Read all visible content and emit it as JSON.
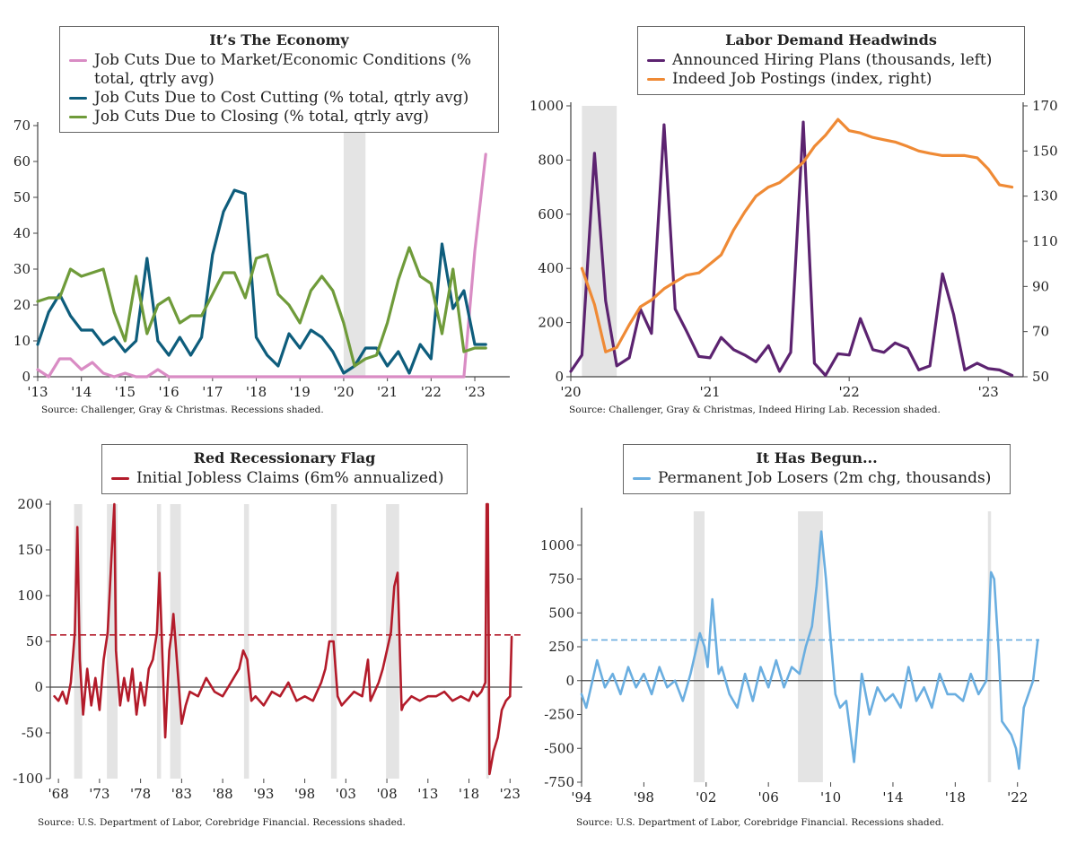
{
  "panels": {
    "p1": {
      "title": "It’s The Economy",
      "legend": [
        "Job Cuts Due to Market/Economic Conditions (% total, qtrly avg)",
        "Job Cuts Due to Cost Cutting (% total, qtrly avg)",
        "Job Cuts Due to Closing (% total, qtrly avg)"
      ],
      "source": "Source: Challenger, Gray & Christmas. Recessions shaded."
    },
    "p2": {
      "title": "Labor Demand Headwinds",
      "legend": [
        "Announced Hiring Plans (thousands, left)",
        "Indeed Job Postings (index, right)"
      ],
      "source": "Source: Challenger, Gray & Christmas, Indeed Hiring Lab. Recession shaded."
    },
    "p3": {
      "title": "Red Recessionary Flag",
      "legend": [
        "Initial Jobless Claims (6m% annualized)"
      ],
      "source": "Source: U.S. Department of Labor, Corebridge Financial. Recessions shaded."
    },
    "p4": {
      "title": "It Has Begun...",
      "legend": [
        "Permanent Job Losers (2m chg, thousands)"
      ],
      "source": "Source: U.S. Department of Labor, Corebridge Financial. Recessions shaded."
    }
  },
  "colors": {
    "pink": "#d98cc4",
    "teal": "#0e5d7c",
    "green": "#6f9b3a",
    "purple": "#5c2370",
    "orange": "#ef8a35",
    "red": "#b31b2a",
    "blue": "#6aaee0",
    "shade": "#e4e4e4"
  },
  "chart_data": [
    {
      "type": "line",
      "title": "It’s The Economy",
      "x_ticks": [
        "'13",
        "'14",
        "'15",
        "'16",
        "'17",
        "'18",
        "'19",
        "'20",
        "'21",
        "'22",
        "'23"
      ],
      "y_ticks": [
        0,
        10,
        20,
        30,
        40,
        50,
        60,
        70
      ],
      "ylim": [
        0,
        70
      ],
      "x_range": [
        2013,
        2023.8
      ],
      "recessions": [
        [
          2020.0,
          2020.5
        ]
      ],
      "series": [
        {
          "name": "Job Cuts Due to Market/Economic Conditions (% total, qtrly avg)",
          "color": "pink",
          "x": [
            2013,
            2013.25,
            2013.5,
            2013.75,
            2014,
            2014.25,
            2014.5,
            2014.75,
            2015,
            2015.25,
            2015.5,
            2015.75,
            2016,
            2016.25,
            2016.5,
            2016.75,
            2017,
            2017.5,
            2018,
            2018.5,
            2019,
            2019.5,
            2020,
            2020.5,
            2021,
            2021.5,
            2022,
            2022.25,
            2022.5,
            2022.75,
            2023,
            2023.25
          ],
          "values": [
            2,
            0,
            5,
            5,
            2,
            4,
            1,
            0,
            1,
            0,
            0,
            2,
            0,
            0,
            0,
            0,
            0,
            0,
            0,
            0,
            0,
            0,
            0,
            0,
            0,
            0,
            0,
            0,
            0,
            0,
            35,
            62
          ]
        },
        {
          "name": "Job Cuts Due to Cost Cutting (% total, qtrly avg)",
          "color": "teal",
          "x": [
            2013,
            2013.25,
            2013.5,
            2013.75,
            2014,
            2014.25,
            2014.5,
            2014.75,
            2015,
            2015.25,
            2015.5,
            2015.75,
            2016,
            2016.25,
            2016.5,
            2016.75,
            2017,
            2017.25,
            2017.5,
            2017.75,
            2018,
            2018.25,
            2018.5,
            2018.75,
            2019,
            2019.25,
            2019.5,
            2019.75,
            2020,
            2020.25,
            2020.5,
            2020.75,
            2021,
            2021.25,
            2021.5,
            2021.75,
            2022,
            2022.25,
            2022.5,
            2022.75,
            2023,
            2023.25
          ],
          "values": [
            9,
            18,
            23,
            17,
            13,
            13,
            9,
            11,
            7,
            10,
            33,
            10,
            6,
            11,
            6,
            11,
            34,
            46,
            52,
            51,
            11,
            6,
            3,
            12,
            8,
            13,
            11,
            7,
            1,
            3,
            8,
            8,
            3,
            7,
            1,
            9,
            5,
            37,
            19,
            24,
            9,
            9
          ]
        },
        {
          "name": "Job Cuts Due to Closing (% total, qtrly avg)",
          "color": "green",
          "x": [
            2013,
            2013.25,
            2013.5,
            2013.75,
            2014,
            2014.25,
            2014.5,
            2014.75,
            2015,
            2015.25,
            2015.5,
            2015.75,
            2016,
            2016.25,
            2016.5,
            2016.75,
            2017,
            2017.25,
            2017.5,
            2017.75,
            2018,
            2018.25,
            2018.5,
            2018.75,
            2019,
            2019.25,
            2019.5,
            2019.75,
            2020,
            2020.25,
            2020.5,
            2020.75,
            2021,
            2021.25,
            2021.5,
            2021.75,
            2022,
            2022.25,
            2022.5,
            2022.75,
            2023,
            2023.25
          ],
          "values": [
            21,
            22,
            22,
            30,
            28,
            29,
            30,
            18,
            10,
            28,
            12,
            20,
            22,
            15,
            17,
            17,
            23,
            29,
            29,
            22,
            33,
            34,
            23,
            20,
            15,
            24,
            28,
            24,
            15,
            3,
            5,
            6,
            15,
            27,
            36,
            28,
            26,
            12,
            30,
            7,
            8,
            8
          ]
        }
      ]
    },
    {
      "type": "line",
      "title": "Labor Demand Headwinds",
      "x_ticks": [
        "'20",
        "'21",
        "'22",
        "'23"
      ],
      "y_ticks_left": [
        0,
        200,
        400,
        600,
        800,
        1000
      ],
      "y_ticks_right": [
        50,
        70,
        90,
        110,
        130,
        150,
        170
      ],
      "ylim_left": [
        0,
        1000
      ],
      "ylim_right": [
        50,
        170
      ],
      "x_range": [
        2020,
        2023.25
      ],
      "recessions": [
        [
          2020.08,
          2020.33
        ]
      ],
      "series": [
        {
          "name": "Announced Hiring Plans (thousands, left)",
          "color": "purple",
          "axis": "left",
          "x": [
            2020,
            2020.08,
            2020.17,
            2020.25,
            2020.33,
            2020.42,
            2020.5,
            2020.58,
            2020.67,
            2020.75,
            2020.83,
            2020.92,
            2021,
            2021.08,
            2021.17,
            2021.25,
            2021.33,
            2021.42,
            2021.5,
            2021.58,
            2021.67,
            2021.75,
            2021.83,
            2021.92,
            2022,
            2022.08,
            2022.17,
            2022.25,
            2022.33,
            2022.42,
            2022.5,
            2022.58,
            2022.67,
            2022.75,
            2022.83,
            2022.92,
            2023,
            2023.08,
            2023.17
          ],
          "values": [
            20,
            80,
            825,
            280,
            40,
            70,
            250,
            160,
            930,
            250,
            170,
            75,
            70,
            145,
            100,
            80,
            55,
            115,
            20,
            90,
            940,
            50,
            5,
            85,
            80,
            215,
            100,
            90,
            125,
            105,
            25,
            40,
            380,
            230,
            25,
            50,
            30,
            25,
            5
          ]
        },
        {
          "name": "Indeed Job Postings (index, right)",
          "color": "orange",
          "axis": "right",
          "x": [
            2020,
            2020.08,
            2020.17,
            2020.25,
            2020.33,
            2020.42,
            2020.5,
            2020.58,
            2020.67,
            2020.75,
            2020.83,
            2020.92,
            2021,
            2021.08,
            2021.17,
            2021.25,
            2021.33,
            2021.42,
            2021.5,
            2021.58,
            2021.67,
            2021.75,
            2021.83,
            2021.92,
            2022,
            2022.08,
            2022.17,
            2022.25,
            2022.33,
            2022.42,
            2022.5,
            2022.58,
            2022.67,
            2022.75,
            2022.83,
            2022.92,
            2023,
            2023.08,
            2023.17
          ],
          "values": [
            null,
            98,
            82,
            61,
            63,
            73,
            81,
            84,
            89,
            92,
            95,
            96,
            100,
            104,
            115,
            123,
            130,
            134,
            136,
            140,
            145,
            152,
            157,
            164,
            159,
            158,
            156,
            155,
            154,
            152,
            150,
            149,
            148,
            148,
            148,
            147,
            142,
            135,
            134
          ]
        }
      ]
    },
    {
      "type": "line",
      "title": "Red Recessionary Flag",
      "x_ticks": [
        "'68",
        "'73",
        "'78",
        "'83",
        "'88",
        "'93",
        "'98",
        "'03",
        "'08",
        "'13",
        "'18",
        "'23"
      ],
      "y_ticks": [
        -100,
        -50,
        0,
        50,
        100,
        150,
        200
      ],
      "ylim": [
        -100,
        200
      ],
      "x_range": [
        1967,
        2024.5
      ],
      "threshold": 57,
      "recessions": [
        [
          1969.9,
          1970.9
        ],
        [
          1973.9,
          1975.2
        ],
        [
          1980.0,
          1980.5
        ],
        [
          1981.6,
          1982.9
        ],
        [
          1990.6,
          1991.2
        ],
        [
          2001.2,
          2001.9
        ],
        [
          2007.9,
          2009.5
        ],
        [
          2020.1,
          2020.3
        ]
      ],
      "series": [
        {
          "name": "Initial Jobless Claims (6m% annualized)",
          "color": "red",
          "x": [
            1967.5,
            1968,
            1968.5,
            1969,
            1969.5,
            1970,
            1970.3,
            1970.6,
            1971,
            1971.5,
            1972,
            1972.5,
            1973,
            1973.5,
            1974,
            1974.5,
            1974.8,
            1975,
            1975.5,
            1976,
            1976.5,
            1977,
            1977.5,
            1978,
            1978.5,
            1979,
            1979.5,
            1980,
            1980.3,
            1980.6,
            1981,
            1981.5,
            1981.8,
            1982,
            1982.5,
            1983,
            1983.5,
            1984,
            1985,
            1986,
            1987,
            1988,
            1989,
            1990,
            1990.5,
            1991,
            1991.5,
            1992,
            1993,
            1994,
            1995,
            1996,
            1997,
            1998,
            1999,
            2000,
            2000.5,
            2001,
            2001.5,
            2002,
            2002.5,
            2003,
            2004,
            2005,
            2005.7,
            2006,
            2007,
            2007.5,
            2008,
            2008.5,
            2008.9,
            2009.3,
            2009.8,
            2010,
            2011,
            2012,
            2013,
            2014,
            2015,
            2016,
            2017,
            2018,
            2018.5,
            2019,
            2019.5,
            2020,
            2020.15,
            2020.3,
            2020.5,
            2021,
            2021.5,
            2022,
            2022.5,
            2023,
            2023.2
          ],
          "values": [
            -10,
            -15,
            -5,
            -18,
            5,
            60,
            175,
            30,
            -30,
            20,
            -20,
            10,
            -25,
            30,
            60,
            150,
            200,
            40,
            -20,
            10,
            -15,
            20,
            -30,
            5,
            -20,
            20,
            30,
            60,
            125,
            50,
            -55,
            40,
            60,
            80,
            20,
            -40,
            -20,
            -5,
            -10,
            10,
            -5,
            -10,
            5,
            20,
            40,
            30,
            -15,
            -10,
            -20,
            -5,
            -10,
            5,
            -15,
            -10,
            -15,
            5,
            20,
            50,
            50,
            -10,
            -20,
            -15,
            -5,
            -10,
            30,
            -15,
            5,
            20,
            40,
            60,
            110,
            125,
            -25,
            -20,
            -10,
            -15,
            -10,
            -10,
            -5,
            -15,
            -10,
            -15,
            -5,
            -10,
            -5,
            5,
            200,
            200,
            -95,
            -70,
            -55,
            -25,
            -15,
            -10,
            55
          ]
        }
      ]
    },
    {
      "type": "line",
      "title": "It Has Begun...",
      "x_ticks": [
        "'94",
        "'98",
        "'02",
        "'06",
        "'10",
        "'14",
        "'18",
        "'22"
      ],
      "y_ticks": [
        -750,
        -500,
        -250,
        0,
        250,
        500,
        750,
        1000
      ],
      "ylim": [
        -750,
        1250
      ],
      "x_range": [
        1994,
        2023.4
      ],
      "threshold": 300,
      "recessions": [
        [
          2001.2,
          2001.9
        ],
        [
          2007.9,
          2009.5
        ],
        [
          2020.1,
          2020.3
        ]
      ],
      "series": [
        {
          "name": "Permanent Job Losers (2m chg, thousands)",
          "color": "blue",
          "x": [
            1994,
            1994.3,
            1994.6,
            1995,
            1995.5,
            1996,
            1996.5,
            1997,
            1997.5,
            1998,
            1998.5,
            1999,
            1999.5,
            2000,
            2000.5,
            2001,
            2001.3,
            2001.6,
            2001.9,
            2002.1,
            2002.4,
            2002.8,
            2003,
            2003.5,
            2004,
            2004.5,
            2005,
            2005.5,
            2006,
            2006.5,
            2007,
            2007.5,
            2008,
            2008.4,
            2008.8,
            2009.1,
            2009.4,
            2009.7,
            2010,
            2010.3,
            2010.6,
            2011,
            2011.5,
            2012,
            2012.5,
            2013,
            2013.5,
            2014,
            2014.5,
            2015,
            2015.5,
            2016,
            2016.5,
            2017,
            2017.5,
            2018,
            2018.5,
            2019,
            2019.5,
            2020,
            2020.15,
            2020.3,
            2020.5,
            2020.8,
            2021,
            2021.3,
            2021.6,
            2021.9,
            2022.1,
            2022.4,
            2022.7,
            2023,
            2023.3
          ],
          "values": [
            -100,
            -200,
            -50,
            150,
            -50,
            50,
            -100,
            100,
            -50,
            50,
            -100,
            100,
            -50,
            0,
            -150,
            50,
            200,
            350,
            250,
            100,
            600,
            50,
            100,
            -100,
            -200,
            50,
            -150,
            100,
            -50,
            150,
            -50,
            100,
            50,
            250,
            400,
            700,
            1100,
            750,
            300,
            -100,
            -200,
            -150,
            -600,
            50,
            -250,
            -50,
            -150,
            -100,
            -200,
            100,
            -150,
            -50,
            -200,
            50,
            -100,
            -100,
            -150,
            50,
            -100,
            0,
            400,
            800,
            750,
            200,
            -300,
            -350,
            -400,
            -500,
            -650,
            -200,
            -100,
            0,
            300
          ]
        }
      ]
    }
  ]
}
